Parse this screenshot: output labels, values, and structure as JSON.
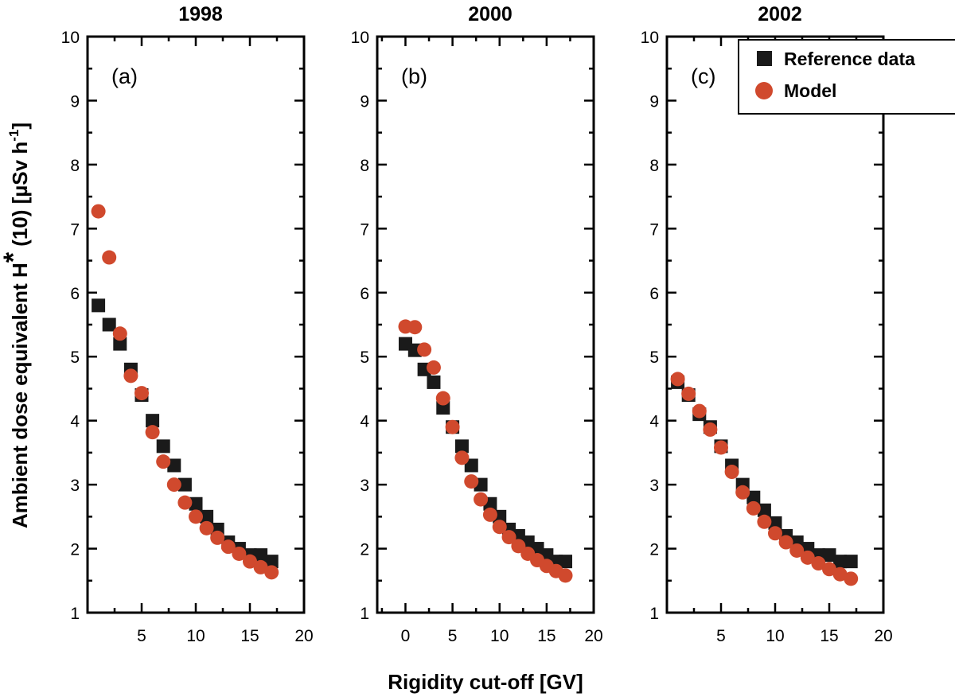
{
  "chart_data": [
    {
      "type": "scatter",
      "title": "1998",
      "panel_label": "(a)",
      "xlim": [
        0,
        20
      ],
      "ylim": [
        1,
        10
      ],
      "xticks": [
        5,
        10,
        15,
        20
      ],
      "yticks": [
        1,
        2,
        3,
        4,
        5,
        6,
        7,
        8,
        9,
        10
      ],
      "series": [
        {
          "name": "Reference data",
          "marker": "square",
          "color": "#1a1a1a",
          "x": [
            1,
            2,
            3,
            4,
            5,
            6,
            7,
            8,
            9,
            10,
            11,
            12,
            13,
            14,
            15,
            16,
            17
          ],
          "y": [
            5.8,
            5.5,
            5.2,
            4.8,
            4.4,
            4.0,
            3.6,
            3.3,
            3.0,
            2.7,
            2.5,
            2.3,
            2.1,
            2.0,
            1.9,
            1.9,
            1.8
          ]
        },
        {
          "name": "Model",
          "marker": "circle",
          "color": "#d0492d",
          "x": [
            1,
            2,
            3,
            4,
            5,
            6,
            7,
            8,
            9,
            10,
            11,
            12,
            13,
            14,
            15,
            16,
            17
          ],
          "y": [
            7.27,
            6.55,
            5.36,
            4.7,
            4.43,
            3.82,
            3.36,
            3.0,
            2.72,
            2.5,
            2.32,
            2.17,
            2.03,
            1.92,
            1.8,
            1.71,
            1.63
          ]
        }
      ]
    },
    {
      "type": "scatter",
      "title": "2000",
      "panel_label": "(b)",
      "xlim": [
        -3,
        20
      ],
      "ylim": [
        1,
        10
      ],
      "xticks": [
        0,
        5,
        10,
        15,
        20
      ],
      "yticks": [
        1,
        2,
        3,
        4,
        5,
        6,
        7,
        8,
        9,
        10
      ],
      "series": [
        {
          "name": "Reference data",
          "marker": "square",
          "color": "#1a1a1a",
          "x": [
            0,
            1,
            2,
            3,
            4,
            5,
            6,
            7,
            8,
            9,
            10,
            11,
            12,
            13,
            14,
            15,
            16,
            17
          ],
          "y": [
            5.2,
            5.1,
            4.8,
            4.6,
            4.2,
            3.9,
            3.6,
            3.3,
            3.0,
            2.7,
            2.5,
            2.3,
            2.2,
            2.1,
            2.0,
            1.9,
            1.8,
            1.8
          ]
        },
        {
          "name": "Model",
          "marker": "circle",
          "color": "#d0492d",
          "x": [
            0,
            1,
            2,
            3,
            4,
            5,
            6,
            7,
            8,
            9,
            10,
            11,
            12,
            13,
            14,
            15,
            16,
            17
          ],
          "y": [
            5.47,
            5.46,
            5.11,
            4.83,
            4.35,
            3.9,
            3.42,
            3.05,
            2.77,
            2.53,
            2.34,
            2.18,
            2.04,
            1.92,
            1.82,
            1.73,
            1.65,
            1.58
          ]
        }
      ]
    },
    {
      "type": "scatter",
      "title": "2002",
      "panel_label": "(c)",
      "xlim": [
        0,
        20
      ],
      "ylim": [
        1,
        10
      ],
      "xticks": [
        5,
        10,
        15,
        20
      ],
      "yticks": [
        1,
        2,
        3,
        4,
        5,
        6,
        7,
        8,
        9,
        10
      ],
      "series": [
        {
          "name": "Reference data",
          "marker": "square",
          "color": "#1a1a1a",
          "x": [
            1,
            2,
            3,
            4,
            5,
            6,
            7,
            8,
            9,
            10,
            11,
            12,
            13,
            14,
            15,
            16,
            17
          ],
          "y": [
            4.6,
            4.4,
            4.1,
            3.9,
            3.6,
            3.3,
            3.0,
            2.8,
            2.6,
            2.4,
            2.2,
            2.1,
            2.0,
            1.9,
            1.9,
            1.8,
            1.8
          ]
        },
        {
          "name": "Model",
          "marker": "circle",
          "color": "#d0492d",
          "x": [
            1,
            2,
            3,
            4,
            5,
            6,
            7,
            8,
            9,
            10,
            11,
            12,
            13,
            14,
            15,
            16,
            17
          ],
          "y": [
            4.65,
            4.42,
            4.15,
            3.86,
            3.58,
            3.2,
            2.88,
            2.63,
            2.42,
            2.24,
            2.1,
            1.97,
            1.86,
            1.77,
            1.68,
            1.6,
            1.53
          ]
        }
      ]
    }
  ],
  "ylabel": "Ambient dose equivalent H* (10) [µSv h-1]",
  "ylabel_parts": {
    "main": "Ambient dose equivalent H",
    "star": "*",
    "rest": " (10) [µSv h",
    "exponent": "-1",
    "close": "]"
  },
  "xlabel": "Rigidity cut-off  [GV]",
  "legend": {
    "placement": "top-right of panel (c)",
    "items": [
      {
        "label": "Reference data",
        "marker": "square",
        "color": "#1a1a1a"
      },
      {
        "label": "Model",
        "marker": "circle",
        "color": "#d0492d"
      }
    ]
  }
}
